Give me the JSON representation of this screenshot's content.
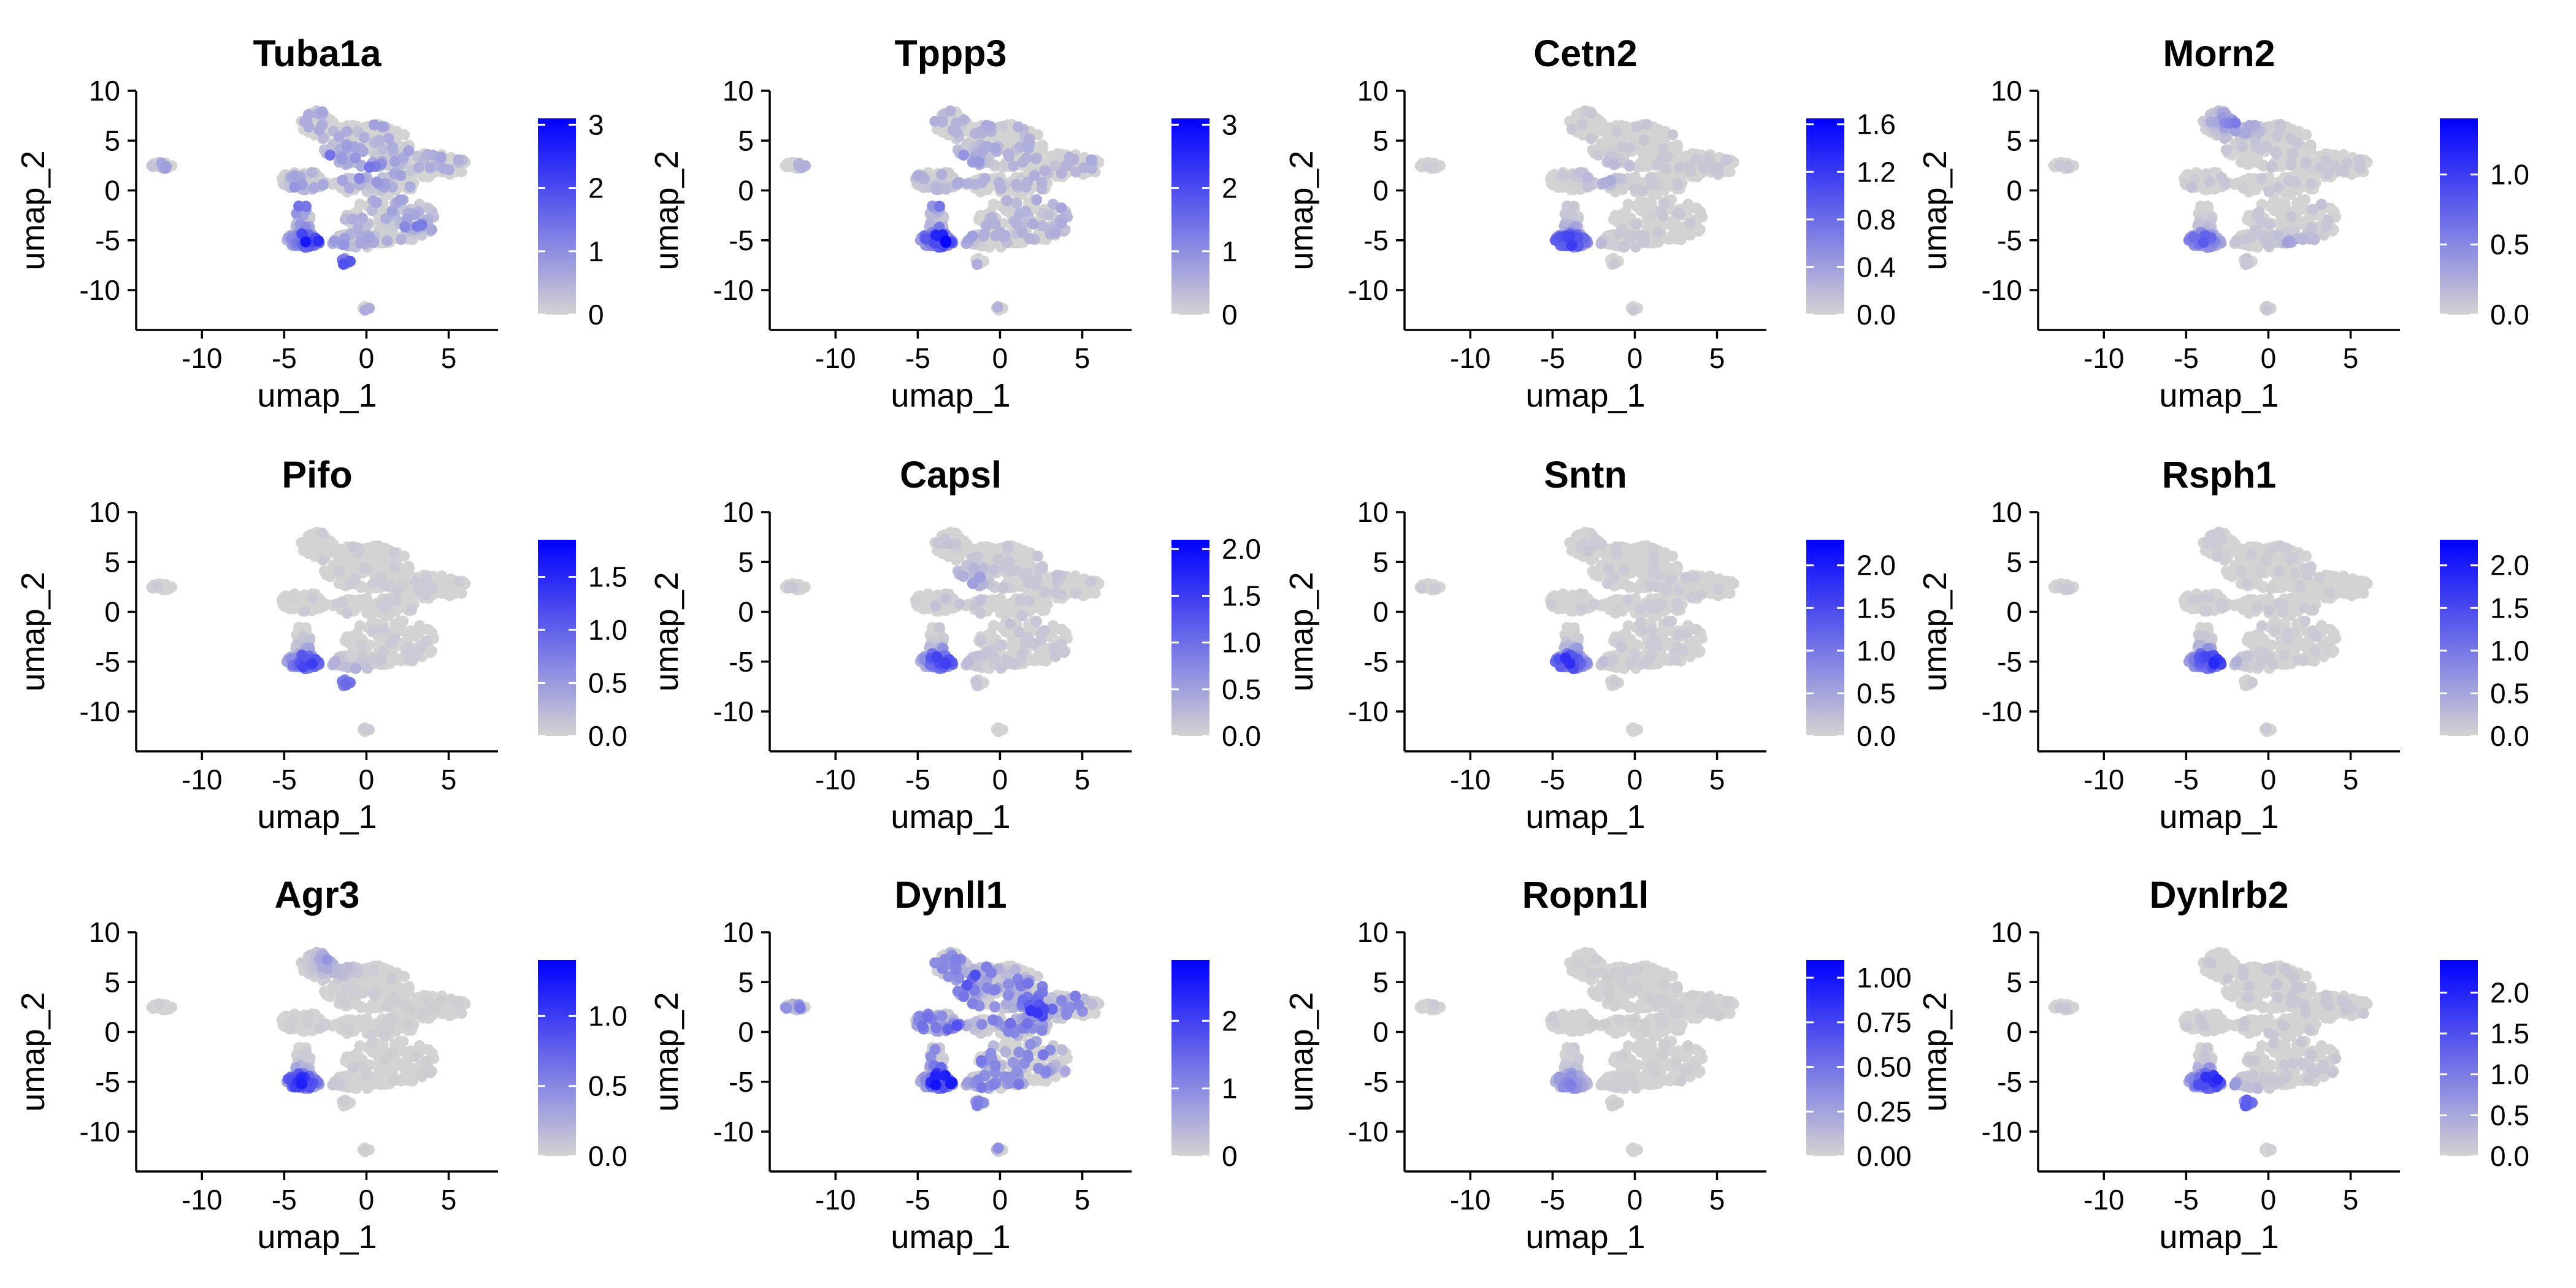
{
  "chart_data": [
    {
      "type": "scatter",
      "title": "Tuba1a",
      "xlabel": "umap_1",
      "ylabel": "umap_2",
      "x_ticks": [
        -10,
        -5,
        0,
        5
      ],
      "y_ticks": [
        10,
        5,
        0,
        -5,
        -10
      ],
      "xlim": [
        -14,
        8
      ],
      "ylim": [
        -14,
        10
      ],
      "colorbar": {
        "max": 3.1,
        "ticks": [
          0,
          1,
          2,
          3
        ],
        "labels": [
          "0",
          "1",
          "2",
          "3"
        ]
      },
      "color_low": "#d3d3d3",
      "color_high": "#0000ff",
      "hot_spots": [
        [
          -3.5,
          -5,
          0.75
        ],
        [
          -1.5,
          -7,
          0.5
        ],
        [
          -2,
          3,
          0.35
        ],
        [
          0,
          2,
          0.3
        ],
        [
          3,
          -3,
          0.3
        ],
        [
          -4,
          -1,
          0.35
        ]
      ],
      "base_level": 0.18
    },
    {
      "type": "scatter",
      "title": "Tppp3",
      "xlabel": "umap_1",
      "ylabel": "umap_2",
      "x_ticks": [
        -10,
        -5,
        0,
        5
      ],
      "y_ticks": [
        10,
        5,
        0,
        -5,
        -10
      ],
      "xlim": [
        -14,
        8
      ],
      "ylim": [
        -14,
        10
      ],
      "colorbar": {
        "max": 3.1,
        "ticks": [
          0,
          1,
          2,
          3
        ],
        "labels": [
          "0",
          "1",
          "2",
          "3"
        ]
      },
      "color_low": "#d3d3d3",
      "color_high": "#0000ff",
      "hot_spots": [
        [
          -3.5,
          -5,
          0.85
        ],
        [
          5,
          -3,
          0.45
        ],
        [
          -2,
          3,
          0.3
        ],
        [
          -4,
          -1,
          0.4
        ]
      ],
      "base_level": 0.15
    },
    {
      "type": "scatter",
      "title": "Cetn2",
      "xlabel": "umap_1",
      "ylabel": "umap_2",
      "x_ticks": [
        -10,
        -5,
        0,
        5
      ],
      "y_ticks": [
        10,
        5,
        0,
        -5,
        -10
      ],
      "xlim": [
        -14,
        8
      ],
      "ylim": [
        -14,
        10
      ],
      "colorbar": {
        "max": 1.65,
        "ticks": [
          0,
          0.4,
          0.8,
          1.2,
          1.6
        ],
        "labels": [
          "0.0",
          "0.4",
          "0.8",
          "1.2",
          "1.6"
        ]
      },
      "color_low": "#d3d3d3",
      "color_high": "#0000ff",
      "hot_spots": [
        [
          -4,
          -5,
          0.8
        ],
        [
          -2,
          2,
          0.3
        ]
      ],
      "base_level": 0.05
    },
    {
      "type": "scatter",
      "title": "Morn2",
      "xlabel": "umap_1",
      "ylabel": "umap_2",
      "x_ticks": [
        -10,
        -5,
        0,
        5
      ],
      "y_ticks": [
        10,
        5,
        0,
        -5,
        -10
      ],
      "xlim": [
        -14,
        8
      ],
      "ylim": [
        -14,
        10
      ],
      "colorbar": {
        "max": 1.4,
        "ticks": [
          0,
          0.5,
          1
        ],
        "labels": [
          "0.0",
          "0.5",
          "1.0"
        ]
      },
      "color_low": "#d3d3d3",
      "color_high": "#0000ff",
      "hot_spots": [
        [
          -4,
          -5,
          0.55
        ],
        [
          -2,
          7,
          0.5
        ],
        [
          2,
          -6,
          0.4
        ]
      ],
      "base_level": 0.06
    },
    {
      "type": "scatter",
      "title": "Pifo",
      "xlabel": "umap_1",
      "ylabel": "umap_2",
      "x_ticks": [
        -10,
        -5,
        0,
        5
      ],
      "y_ticks": [
        10,
        5,
        0,
        -5,
        -10
      ],
      "xlim": [
        -14,
        8
      ],
      "ylim": [
        -14,
        10
      ],
      "colorbar": {
        "max": 1.85,
        "ticks": [
          0,
          0.5,
          1,
          1.5
        ],
        "labels": [
          "0.0",
          "0.5",
          "1.0",
          "1.5"
        ]
      },
      "color_low": "#d3d3d3",
      "color_high": "#0000ff",
      "hot_spots": [
        [
          -3.5,
          -5,
          0.8
        ],
        [
          -1.5,
          -7,
          0.6
        ]
      ],
      "base_level": 0.04
    },
    {
      "type": "scatter",
      "title": "Capsl",
      "xlabel": "umap_1",
      "ylabel": "umap_2",
      "x_ticks": [
        -10,
        -5,
        0,
        5
      ],
      "y_ticks": [
        10,
        5,
        0,
        -5,
        -10
      ],
      "xlim": [
        -14,
        8
      ],
      "ylim": [
        -14,
        10
      ],
      "colorbar": {
        "max": 2.1,
        "ticks": [
          0,
          0.5,
          1,
          1.5,
          2
        ],
        "labels": [
          "0.0",
          "0.5",
          "1.0",
          "1.5",
          "2.0"
        ]
      },
      "color_low": "#d3d3d3",
      "color_high": "#0000ff",
      "hot_spots": [
        [
          -3.5,
          -5,
          0.8
        ],
        [
          -2,
          3,
          0.3
        ]
      ],
      "base_level": 0.06
    },
    {
      "type": "scatter",
      "title": "Sntn",
      "xlabel": "umap_1",
      "ylabel": "umap_2",
      "x_ticks": [
        -10,
        -5,
        0,
        5
      ],
      "y_ticks": [
        10,
        5,
        0,
        -5,
        -10
      ],
      "xlim": [
        -14,
        8
      ],
      "ylim": [
        -14,
        10
      ],
      "colorbar": {
        "max": 2.3,
        "ticks": [
          0,
          0.5,
          1,
          1.5,
          2
        ],
        "labels": [
          "0.0",
          "0.5",
          "1.0",
          "1.5",
          "2.0"
        ]
      },
      "color_low": "#d3d3d3",
      "color_high": "#0000ff",
      "hot_spots": [
        [
          -4,
          -5,
          0.85
        ]
      ],
      "base_level": 0.04
    },
    {
      "type": "scatter",
      "title": "Rsph1",
      "xlabel": "umap_1",
      "ylabel": "umap_2",
      "x_ticks": [
        -10,
        -5,
        0,
        5
      ],
      "y_ticks": [
        10,
        5,
        0,
        -5,
        -10
      ],
      "xlim": [
        -14,
        8
      ],
      "ylim": [
        -14,
        10
      ],
      "colorbar": {
        "max": 2.3,
        "ticks": [
          0,
          0.5,
          1,
          1.5,
          2
        ],
        "labels": [
          "0.0",
          "0.5",
          "1.0",
          "1.5",
          "2.0"
        ]
      },
      "color_low": "#d3d3d3",
      "color_high": "#0000ff",
      "hot_spots": [
        [
          -3.5,
          -5,
          0.85
        ]
      ],
      "base_level": 0.04
    },
    {
      "type": "scatter",
      "title": "Agr3",
      "xlabel": "umap_1",
      "ylabel": "umap_2",
      "x_ticks": [
        -10,
        -5,
        0,
        5
      ],
      "y_ticks": [
        10,
        5,
        0,
        -5,
        -10
      ],
      "xlim": [
        -14,
        8
      ],
      "ylim": [
        -14,
        10
      ],
      "colorbar": {
        "max": 1.4,
        "ticks": [
          0,
          0.5,
          1
        ],
        "labels": [
          "0.0",
          "0.5",
          "1.0"
        ]
      },
      "color_low": "#d3d3d3",
      "color_high": "#0000ff",
      "hot_spots": [
        [
          -4,
          -5,
          0.85
        ],
        [
          -2,
          7,
          0.3
        ]
      ],
      "base_level": 0.03
    },
    {
      "type": "scatter",
      "title": "Dynll1",
      "xlabel": "umap_1",
      "ylabel": "umap_2",
      "x_ticks": [
        -10,
        -5,
        0,
        5
      ],
      "y_ticks": [
        10,
        5,
        0,
        -5,
        -10
      ],
      "xlim": [
        -14,
        8
      ],
      "ylim": [
        -14,
        10
      ],
      "colorbar": {
        "max": 2.9,
        "ticks": [
          0,
          1,
          2
        ],
        "labels": [
          "0",
          "1",
          "2"
        ]
      },
      "color_low": "#d3d3d3",
      "color_high": "#0000ff",
      "hot_spots": [
        [
          -3.5,
          -5,
          0.7
        ],
        [
          -2,
          5,
          0.5
        ],
        [
          2,
          2,
          0.45
        ],
        [
          -3,
          0,
          0.45
        ]
      ],
      "base_level": 0.32
    },
    {
      "type": "scatter",
      "title": "Ropn1l",
      "xlabel": "umap_1",
      "ylabel": "umap_2",
      "x_ticks": [
        -10,
        -5,
        0,
        5
      ],
      "y_ticks": [
        10,
        5,
        0,
        -5,
        -10
      ],
      "xlim": [
        -14,
        8
      ],
      "ylim": [
        -14,
        10
      ],
      "colorbar": {
        "max": 1.1,
        "ticks": [
          0,
          0.25,
          0.5,
          0.75,
          1
        ],
        "labels": [
          "0.00",
          "0.25",
          "0.50",
          "0.75",
          "1.00"
        ]
      },
      "color_low": "#d3d3d3",
      "color_high": "#0000ff",
      "hot_spots": [
        [
          -4,
          -5,
          0.4
        ]
      ],
      "base_level": 0.03
    },
    {
      "type": "scatter",
      "title": "Dynlrb2",
      "xlabel": "umap_1",
      "ylabel": "umap_2",
      "x_ticks": [
        -10,
        -5,
        0,
        5
      ],
      "y_ticks": [
        10,
        5,
        0,
        -5,
        -10
      ],
      "xlim": [
        -14,
        8
      ],
      "ylim": [
        -14,
        10
      ],
      "colorbar": {
        "max": 2.4,
        "ticks": [
          0,
          0.5,
          1,
          1.5,
          2
        ],
        "labels": [
          "0.0",
          "0.5",
          "1.0",
          "1.5",
          "2.0"
        ]
      },
      "color_low": "#d3d3d3",
      "color_high": "#0000ff",
      "hot_spots": [
        [
          -3.5,
          -5,
          0.9
        ],
        [
          -1.5,
          -7,
          0.6
        ]
      ],
      "base_level": 0.05
    }
  ]
}
